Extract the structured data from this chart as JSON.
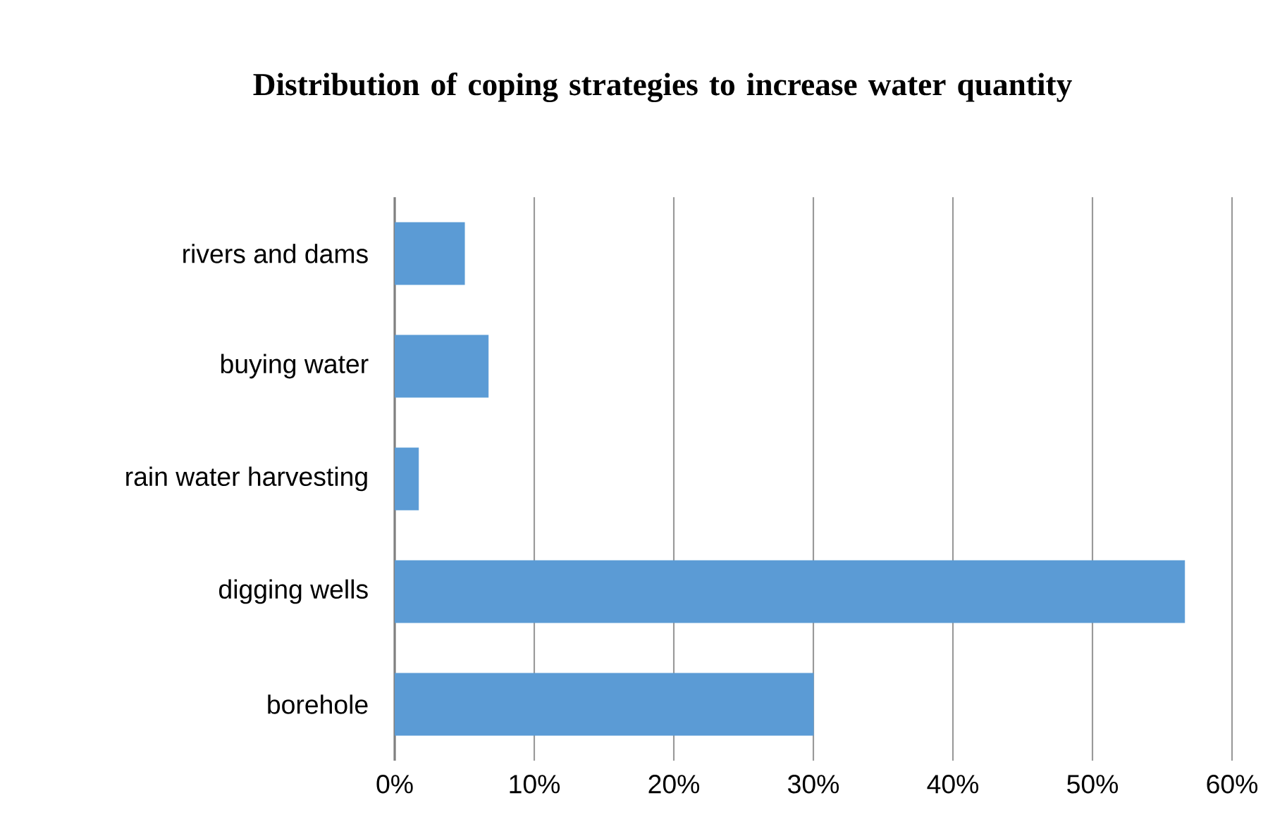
{
  "chart_data": {
    "type": "bar",
    "orientation": "horizontal",
    "title": "Distribution of coping strategies to increase water quantity",
    "categories": [
      "rivers and dams",
      "buying water",
      "rain water harvesting",
      "digging wells",
      "borehole"
    ],
    "values": [
      5,
      6.7,
      1.7,
      56.6,
      30
    ],
    "color": "#5b9bd5",
    "xlim": [
      0,
      60
    ],
    "xticks": [
      {
        "value": 0,
        "label": "0%"
      },
      {
        "value": 10,
        "label": "10%"
      },
      {
        "value": 20,
        "label": "20%"
      },
      {
        "value": 30,
        "label": "30%"
      },
      {
        "value": 40,
        "label": "40%"
      },
      {
        "value": 50,
        "label": "50%"
      },
      {
        "value": 60,
        "label": "60%"
      }
    ],
    "grid": "x"
  }
}
